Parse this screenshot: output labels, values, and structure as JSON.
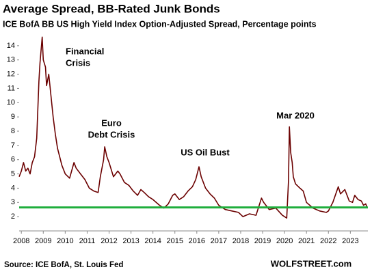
{
  "chart_data": {
    "type": "line",
    "title": "Average Spread, BB-Rated Junk Bonds",
    "subtitle": "ICE BofA BB US High Yield Index Option-Adjusted Spread, Percentage points",
    "source": "Source: ICE BofA, St. Louis Fed",
    "brand": "WOLFSTREET.com",
    "color": "#6b0000",
    "reference_line": {
      "value": 2.65,
      "color": "#1fae3c"
    },
    "annotations": [
      {
        "lines": [
          "Financial",
          "Crisis"
        ]
      },
      {
        "lines": [
          "Euro",
          "Debt Crisis"
        ]
      },
      {
        "lines": [
          "US Oil Bust"
        ]
      },
      {
        "lines": [
          "Mar 2020"
        ]
      }
    ],
    "xlim": [
      2007.9,
      2023.8
    ],
    "xticks": [
      2008,
      2009,
      2010,
      2011,
      2012,
      2013,
      2014,
      2015,
      2016,
      2017,
      2018,
      2019,
      2020,
      2021,
      2022,
      2023
    ],
    "ylim": [
      1,
      15
    ],
    "yticks": [
      2,
      3,
      4,
      5,
      6,
      7,
      8,
      9,
      10,
      11,
      12,
      13,
      14
    ],
    "x": [
      2007.9,
      2008.0,
      2008.1,
      2008.2,
      2008.3,
      2008.4,
      2008.5,
      2008.6,
      2008.7,
      2008.8,
      2008.85,
      2008.95,
      2009.0,
      2009.1,
      2009.15,
      2009.25,
      2009.35,
      2009.45,
      2009.55,
      2009.65,
      2009.75,
      2009.85,
      2010.0,
      2010.2,
      2010.4,
      2010.5,
      2010.7,
      2010.9,
      2011.1,
      2011.3,
      2011.5,
      2011.6,
      2011.75,
      2011.8,
      2011.9,
      2012.0,
      2012.2,
      2012.4,
      2012.5,
      2012.7,
      2012.9,
      2013.1,
      2013.3,
      2013.45,
      2013.6,
      2013.8,
      2014.0,
      2014.3,
      2014.5,
      2014.7,
      2014.9,
      2015.0,
      2015.2,
      2015.4,
      2015.6,
      2015.8,
      2015.95,
      2016.1,
      2016.2,
      2016.4,
      2016.6,
      2016.8,
      2017.0,
      2017.3,
      2017.6,
      2017.9,
      2018.1,
      2018.4,
      2018.7,
      2018.95,
      2019.05,
      2019.3,
      2019.6,
      2019.9,
      2020.1,
      2020.18,
      2020.22,
      2020.28,
      2020.35,
      2020.4,
      2020.5,
      2020.7,
      2020.85,
      2021.0,
      2021.3,
      2021.6,
      2021.9,
      2022.0,
      2022.2,
      2022.45,
      2022.55,
      2022.75,
      2022.95,
      2023.1,
      2023.2,
      2023.35,
      2023.5,
      2023.6,
      2023.7,
      2023.75
    ],
    "values": [
      4.8,
      5.2,
      5.8,
      5.2,
      5.4,
      5.0,
      5.8,
      6.2,
      7.5,
      11.5,
      12.8,
      14.6,
      13.0,
      12.5,
      11.2,
      12.0,
      10.5,
      9.0,
      7.8,
      6.8,
      6.2,
      5.6,
      5.0,
      4.7,
      5.8,
      5.4,
      5.0,
      4.6,
      4.0,
      3.8,
      3.7,
      4.8,
      6.0,
      6.9,
      6.2,
      5.8,
      4.8,
      5.2,
      5.0,
      4.4,
      4.2,
      3.8,
      3.5,
      3.9,
      3.7,
      3.4,
      3.2,
      2.8,
      2.6,
      2.9,
      3.5,
      3.6,
      3.2,
      3.4,
      3.8,
      4.1,
      4.6,
      5.5,
      4.8,
      4.0,
      3.6,
      3.3,
      2.8,
      2.5,
      2.4,
      2.3,
      2.0,
      2.2,
      2.1,
      3.3,
      3.0,
      2.5,
      2.6,
      2.1,
      1.9,
      4.5,
      8.3,
      6.5,
      5.8,
      4.8,
      4.3,
      4.0,
      3.8,
      3.0,
      2.6,
      2.4,
      2.3,
      2.4,
      3.0,
      4.1,
      3.6,
      3.9,
      3.1,
      3.0,
      3.5,
      3.2,
      3.1,
      2.8,
      2.9,
      2.7
    ]
  }
}
